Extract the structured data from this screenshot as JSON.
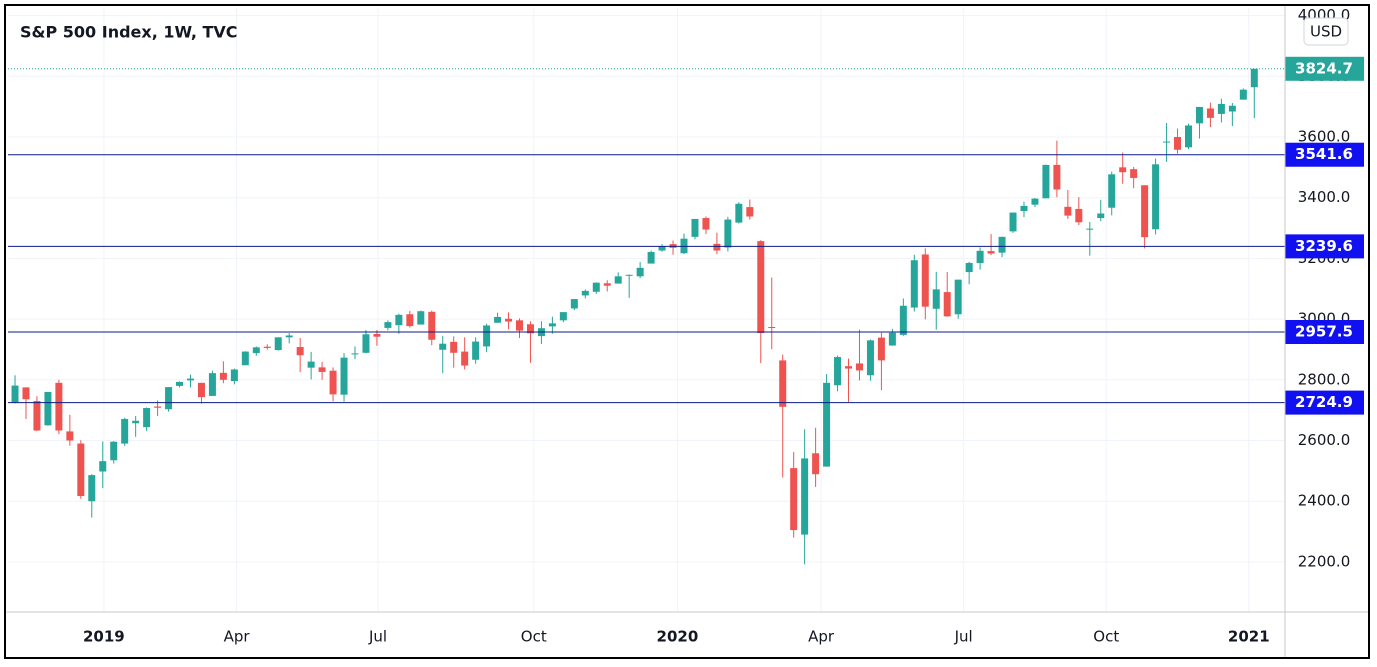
{
  "chart_data": {
    "type": "candlestick",
    "title": "S&P 500 Index, 1W, TVC",
    "currency": "USD",
    "up_color": "#26a69a",
    "down_color": "#ef5350",
    "grid": true,
    "xlim": [
      -0.64,
      115.8
    ],
    "xticks": [
      {
        "value": 8.1,
        "label": "2019"
      },
      {
        "value": 20.2,
        "label": "Apr"
      },
      {
        "value": 33.1,
        "label": "Jul"
      },
      {
        "value": 47.3,
        "label": "Oct"
      },
      {
        "value": 60.4,
        "label": "2020"
      },
      {
        "value": 73.5,
        "label": "Apr"
      },
      {
        "value": 86.5,
        "label": "Jul"
      },
      {
        "value": 99.5,
        "label": "Oct"
      },
      {
        "value": 112.5,
        "label": "2021"
      }
    ],
    "ylim": [
      2035,
      4025
    ],
    "yticks": [
      {
        "value": 2200,
        "label": "2200.0"
      },
      {
        "value": 2400,
        "label": "2400.0"
      },
      {
        "value": 2600,
        "label": "2600.0"
      },
      {
        "value": 2800,
        "label": "2800.0"
      },
      {
        "value": 3000,
        "label": "3000.0"
      },
      {
        "value": 3200,
        "label": "3200.0"
      },
      {
        "value": 3400,
        "label": "3400.0"
      },
      {
        "value": 3600,
        "label": "3600.0"
      },
      {
        "value": 3800,
        "label": "3800.0"
      },
      {
        "value": 4000,
        "label": "4000.0"
      }
    ],
    "levels": [
      3541.6,
      3239.6,
      2957.5,
      2724.9
    ],
    "level_color": "#0c1a8a",
    "level_label_color": "#1010f0",
    "open": [
      2726,
      2775,
      2730,
      2650,
      2790,
      2630,
      2590,
      2400,
      2498,
      2535,
      2590,
      2657,
      2644,
      2712,
      2703,
      2780,
      2798,
      2790,
      2747,
      2823,
      2796,
      2848,
      2888,
      2909,
      2898,
      2940,
      2908,
      2840,
      2841,
      2830,
      2751,
      2885,
      2889,
      2951,
      2971,
      2980,
      3016,
      2982,
      3024,
      2899,
      2925,
      2893,
      2866,
      2910,
      2988,
      3001,
      2996,
      2983,
      2944,
      2976,
      2996,
      3035,
      3078,
      3090,
      3118,
      3117,
      3144,
      3141,
      3183,
      3226,
      3247,
      3217,
      3271,
      3333,
      3248,
      3236,
      3318,
      3369,
      3257,
      2974,
      2864,
      2509,
      2290,
      2558,
      2514,
      2782,
      2845,
      2854,
      2815,
      2939,
      2913,
      2948,
      3038,
      3213,
      3034,
      3089,
      3016,
      3155,
      3185,
      3224,
      3219,
      3289,
      3356,
      3377,
      3398,
      3508,
      3370,
      3363,
      3296,
      3333,
      3367,
      3500,
      3494,
      3441,
      3296,
      3584,
      3600,
      3566,
      3645,
      3694,
      3676,
      3684,
      3723,
      3764
    ],
    "high": [
      2815,
      2775,
      2746,
      2760,
      2800,
      2685,
      2601,
      2489,
      2597,
      2598,
      2675,
      2681,
      2709,
      2732,
      2776,
      2795,
      2817,
      2790,
      2830,
      2861,
      2837,
      2894,
      2910,
      2917,
      2940,
      2954,
      2938,
      2892,
      2859,
      2841,
      2888,
      2910,
      2964,
      2964,
      2996,
      3018,
      3027,
      3028,
      3028,
      2945,
      2943,
      2940,
      2940,
      2985,
      3021,
      3022,
      3002,
      2993,
      2993,
      3008,
      3023,
      3066,
      3098,
      3121,
      3128,
      3154,
      3147,
      3188,
      3226,
      3247,
      3259,
      3282,
      3330,
      3338,
      3285,
      3337,
      3385,
      3394,
      3260,
      3137,
      2883,
      2562,
      2637,
      2642,
      2819,
      2880,
      2870,
      2965,
      2933,
      2955,
      2968,
      3068,
      3212,
      3233,
      3156,
      3155,
      3130,
      3189,
      3236,
      3280,
      3272,
      3351,
      3387,
      3399,
      3509,
      3588,
      3425,
      3402,
      3320,
      3393,
      3486,
      3549,
      3501,
      3441,
      3529,
      3646,
      3628,
      3644,
      3699,
      3713,
      3726,
      3712,
      3760,
      3824.7
    ],
    "low": [
      2722,
      2671,
      2631,
      2649,
      2621,
      2583,
      2408,
      2346,
      2443,
      2524,
      2582,
      2612,
      2631,
      2681,
      2695,
      2775,
      2775,
      2722,
      2747,
      2789,
      2785,
      2848,
      2879,
      2899,
      2896,
      2920,
      2825,
      2801,
      2800,
      2729,
      2728,
      2868,
      2888,
      2912,
      2963,
      2952,
      2972,
      2982,
      2914,
      2822,
      2840,
      2834,
      2853,
      2891,
      2988,
      2967,
      2938,
      2856,
      2918,
      2952,
      2990,
      3030,
      3068,
      3083,
      3091,
      3117,
      3070,
      3135,
      3183,
      3222,
      3212,
      3214,
      3263,
      3280,
      3214,
      3223,
      3315,
      3328,
      2855,
      2901,
      2478,
      2280,
      2192,
      2447,
      2514,
      2762,
      2727,
      2798,
      2797,
      2766,
      2912,
      2945,
      3025,
      2999,
      2965,
      3008,
      3001,
      3115,
      3163,
      3211,
      3204,
      3284,
      3336,
      3369,
      3398,
      3402,
      3330,
      3310,
      3209,
      3323,
      3342,
      3446,
      3431,
      3233,
      3279,
      3518,
      3545,
      3560,
      3595,
      3633,
      3648,
      3636,
      3723,
      3662
    ],
    "close": [
      2781,
      2736,
      2633,
      2760,
      2633,
      2600,
      2417,
      2486,
      2532,
      2596,
      2671,
      2665,
      2707,
      2708,
      2776,
      2793,
      2804,
      2743,
      2822,
      2800,
      2834,
      2893,
      2907,
      2905,
      2940,
      2946,
      2881,
      2860,
      2826,
      2752,
      2873,
      2887,
      2950,
      2942,
      2990,
      3014,
      2977,
      3026,
      2932,
      2919,
      2889,
      2847,
      2926,
      2979,
      3007,
      2992,
      2962,
      2953,
      2970,
      2986,
      3023,
      3066,
      3093,
      3120,
      3110,
      3141,
      3146,
      3169,
      3221,
      3240,
      3235,
      3265,
      3330,
      3295,
      3226,
      3328,
      3380,
      3338,
      2954,
      2972,
      2711,
      2305,
      2541,
      2489,
      2790,
      2875,
      2837,
      2831,
      2930,
      2864,
      2955,
      3044,
      3194,
      3041,
      3098,
      3009,
      3130,
      3185,
      3225,
      3216,
      3271,
      3351,
      3373,
      3397,
      3508,
      3427,
      3341,
      3319,
      3298,
      3348,
      3477,
      3484,
      3465,
      3270,
      3510,
      3585,
      3558,
      3638,
      3699,
      3663,
      3709,
      3703,
      3756,
      3824.7
    ]
  }
}
